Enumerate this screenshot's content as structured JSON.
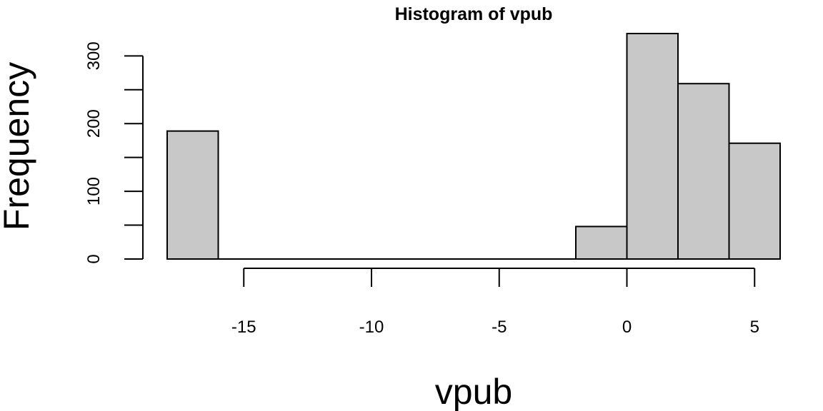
{
  "chart_data": {
    "type": "bar",
    "title": "Histogram of vpub",
    "xlabel": "vpub",
    "ylabel": "Frequency",
    "bins": [
      {
        "from": -18,
        "to": -16,
        "count": 189
      },
      {
        "from": -16,
        "to": -14,
        "count": 0
      },
      {
        "from": -14,
        "to": -12,
        "count": 0
      },
      {
        "from": -12,
        "to": -10,
        "count": 0
      },
      {
        "from": -10,
        "to": -8,
        "count": 0
      },
      {
        "from": -8,
        "to": -6,
        "count": 0
      },
      {
        "from": -6,
        "to": -4,
        "count": 0
      },
      {
        "from": -4,
        "to": -2,
        "count": 0
      },
      {
        "from": -2,
        "to": 0,
        "count": 48
      },
      {
        "from": 0,
        "to": 2,
        "count": 333
      },
      {
        "from": 2,
        "to": 4,
        "count": 259
      },
      {
        "from": 4,
        "to": 6,
        "count": 171
      }
    ],
    "xlim": [
      -18,
      6
    ],
    "ylim": [
      0,
      333
    ],
    "x_ticks": [
      -15,
      -10,
      -5,
      0,
      5
    ],
    "y_ticks": [
      0,
      50,
      100,
      150,
      200,
      250,
      300
    ],
    "y_tick_labels": [
      {
        "value": 0,
        "label": "0"
      },
      {
        "value": 100,
        "label": "100"
      },
      {
        "value": 200,
        "label": "200"
      },
      {
        "value": 300,
        "label": "300"
      }
    ],
    "bar_color": "#c8c8c8",
    "grid": false
  }
}
